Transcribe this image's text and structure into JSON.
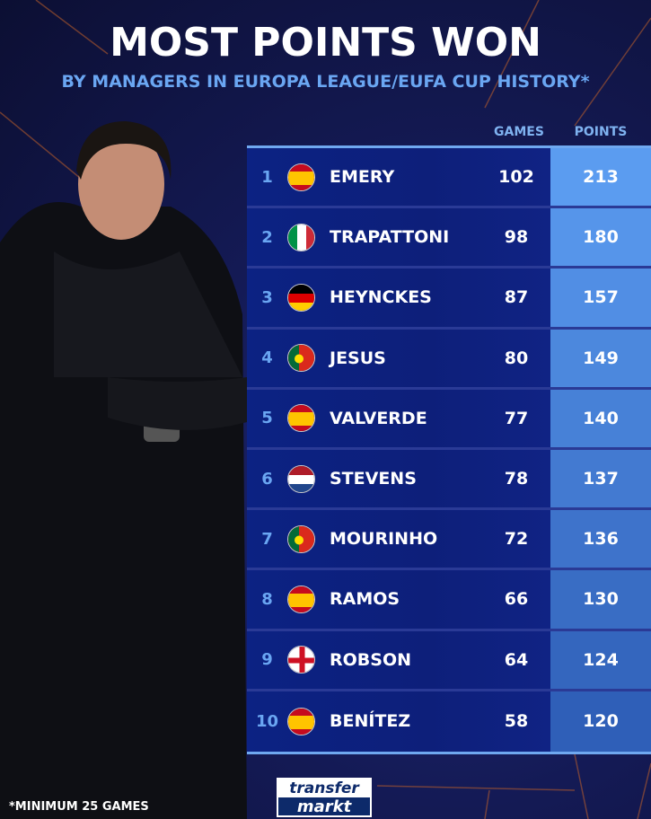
{
  "title": "MOST POINTS WON",
  "subtitle": "BY MANAGERS IN EUROPA LEAGUE/EUFA CUP HISTORY*",
  "footnote": "*MINIMUM 25 GAMES",
  "logo": {
    "line1": "transfer",
    "line2": "markt"
  },
  "colors": {
    "background": "#141a55",
    "row": "#0c2283",
    "points_top": "#5b9cf0",
    "points_bottom": "#2f5fb8",
    "rank": "#6aa6f2"
  },
  "chart_data": {
    "type": "table",
    "columns": [
      "GAMES",
      "POINTS"
    ],
    "rows": [
      {
        "rank": "1",
        "flag": "spain",
        "name": "EMERY",
        "games": "102",
        "points": "213"
      },
      {
        "rank": "2",
        "flag": "italy",
        "name": "TRAPATTONI",
        "games": "98",
        "points": "180"
      },
      {
        "rank": "3",
        "flag": "germany",
        "name": "HEYNCKES",
        "games": "87",
        "points": "157"
      },
      {
        "rank": "4",
        "flag": "portugal",
        "name": "JESUS",
        "games": "80",
        "points": "149"
      },
      {
        "rank": "5",
        "flag": "spain",
        "name": "VALVERDE",
        "games": "77",
        "points": "140"
      },
      {
        "rank": "6",
        "flag": "netherlands",
        "name": "STEVENS",
        "games": "78",
        "points": "137"
      },
      {
        "rank": "7",
        "flag": "portugal",
        "name": "MOURINHO",
        "games": "72",
        "points": "136"
      },
      {
        "rank": "8",
        "flag": "spain",
        "name": "RAMOS",
        "games": "66",
        "points": "130"
      },
      {
        "rank": "9",
        "flag": "england",
        "name": "ROBSON",
        "games": "64",
        "points": "124"
      },
      {
        "rank": "10",
        "flag": "spain",
        "name": "BENÍTEZ",
        "games": "58",
        "points": "120"
      }
    ]
  }
}
